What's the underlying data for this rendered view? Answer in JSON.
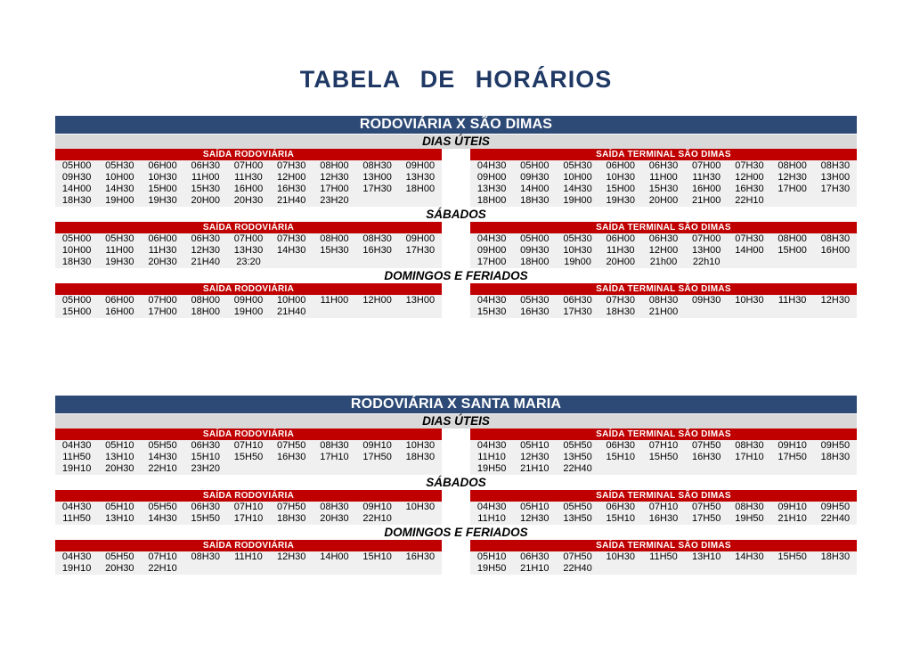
{
  "page_title": "TABELA DE HORÁRIOS",
  "colors": {
    "title_navy": "#1F3864",
    "route_bar_navy": "#2D4A76",
    "header_red": "#C00000",
    "day_band_gray": "#D9D9D9",
    "table_gray": "#F0F0F0"
  },
  "sections": [
    {
      "title": "RODOVIÁRIA X SÃO DIMAS",
      "day_blocks": [
        {
          "label": "DIAS ÚTEIS",
          "band": true,
          "left": {
            "header": "SAÍDA RODOVIÁRIA",
            "rows": [
              [
                "05H00",
                "05H30",
                "06H00",
                "06H30",
                "07H00",
                "07H30",
                "08H00",
                "08H30",
                "09H00"
              ],
              [
                "09H30",
                "10H00",
                "10H30",
                "11H00",
                "11H30",
                "12H00",
                "12H30",
                "13H00",
                "13H30"
              ],
              [
                "14H00",
                "14H30",
                "15H00",
                "15H30",
                "16H00",
                "16H30",
                "17H00",
                "17H30",
                "18H00"
              ],
              [
                "18H30",
                "19H00",
                "19H30",
                "20H00",
                "20H30",
                "21H40",
                "23H20"
              ]
            ]
          },
          "right": {
            "header": "SAÍDA TERMINAL SÃO DIMAS",
            "rows": [
              [
                "04H30",
                "05H00",
                "05H30",
                "06H00",
                "06H30",
                "07H00",
                "07H30",
                "08H00",
                "08H30"
              ],
              [
                "09H00",
                "09H30",
                "10H00",
                "10H30",
                "11H00",
                "11H30",
                "12H00",
                "12H30",
                "13H00"
              ],
              [
                "13H30",
                "14H00",
                "14H30",
                "15H00",
                "15H30",
                "16H00",
                "16H30",
                "17H00",
                "17H30"
              ],
              [
                "18H00",
                "18H30",
                "19H00",
                "19H30",
                "20H00",
                "21H00",
                "22H10"
              ]
            ]
          }
        },
        {
          "label": "SÁBADOS",
          "band": false,
          "left": {
            "header": "SAÍDA RODOVIÁRIA",
            "rows": [
              [
                "05H00",
                "05H30",
                "06H00",
                "06H30",
                "07H00",
                "07H30",
                "08H00",
                "08H30",
                "09H00"
              ],
              [
                "10H00",
                "11H00",
                "11H30",
                "12H30",
                "13H30",
                "14H30",
                "15H30",
                "16H30",
                "17H30"
              ],
              [
                "18H30",
                "19H30",
                "20H30",
                "21H40",
                "23:20"
              ]
            ]
          },
          "right": {
            "header": "SAÍDA TERMINAL SÃO DIMAS",
            "rows": [
              [
                "04H30",
                "05H00",
                "05H30",
                "06H00",
                "06H30",
                "07H00",
                "07H30",
                "08H00",
                "08H30"
              ],
              [
                "09H00",
                "09H30",
                "10H30",
                "11H30",
                "12H00",
                "13H00",
                "14H00",
                "15H00",
                "16H00"
              ],
              [
                "17H00",
                "18H00",
                "19h00",
                "20H00",
                "21h00",
                "22h10"
              ]
            ]
          }
        },
        {
          "label": "DOMINGOS E FERIADOS",
          "band": false,
          "left": {
            "header": "SAÍDA RODOVIÁRIA",
            "rows": [
              [
                "05H00",
                "06H00",
                "07H00",
                "08H00",
                "09H00",
                "10H00",
                "11H00",
                "12H00",
                "13H00"
              ],
              [
                "15H00",
                "16H00",
                "17H00",
                "18H00",
                "19H00",
                "21H40"
              ]
            ]
          },
          "right": {
            "header": "SAÍDA TERMINAL SÃO DIMAS",
            "rows": [
              [
                "04H30",
                "05H30",
                "06H30",
                "07H30",
                "08H30",
                "09H30",
                "10H30",
                "11H30",
                "12H30"
              ],
              [
                "15H30",
                "16H30",
                "17H30",
                "18H30",
                "21H00"
              ]
            ]
          }
        }
      ]
    },
    {
      "title": "RODOVIÁRIA X SANTA MARIA",
      "day_blocks": [
        {
          "label": "DIAS ÚTEIS",
          "band": true,
          "left": {
            "header": "SAÍDA RODOVIÁRIA",
            "rows": [
              [
                "04H30",
                "05H10",
                "05H50",
                "06H30",
                "07H10",
                "07H50",
                "08H30",
                "09H10",
                "10H30"
              ],
              [
                "11H50",
                "13H10",
                "14H30",
                "15H10",
                "15H50",
                "16H30",
                "17H10",
                "17H50",
                "18H30"
              ],
              [
                "19H10",
                "20H30",
                "22H10",
                "23H20"
              ]
            ]
          },
          "right": {
            "header": "SAÍDA TERMINAL SÃO DIMAS",
            "rows": [
              [
                "04H30",
                "05H10",
                "05H50",
                "06H30",
                "07H10",
                "07H50",
                "08H30",
                "09H10",
                "09H50"
              ],
              [
                "11H10",
                "12H30",
                "13H50",
                "15H10",
                "15H50",
                "16H30",
                "17H10",
                "17H50",
                "18H30"
              ],
              [
                "19H50",
                "21H10",
                "22H40"
              ]
            ]
          }
        },
        {
          "label": "SÁBADOS",
          "band": false,
          "left": {
            "header": "SAÍDA RODOVIÁRIA",
            "rows": [
              [
                "04H30",
                "05H10",
                "05H50",
                "06H30",
                "07H10",
                "07H50",
                "08H30",
                "09H10",
                "10H30"
              ],
              [
                "11H50",
                "13H10",
                "14H30",
                "15H50",
                "17H10",
                "18H30",
                "20H30",
                "22H10"
              ]
            ]
          },
          "right": {
            "header": "SAÍDA TERMINAL SÃO DIMAS",
            "rows": [
              [
                "04H30",
                "05H10",
                "05H50",
                "06H30",
                "07H10",
                "07H50",
                "08H30",
                "09H10",
                "09H50"
              ],
              [
                "11H10",
                "12H30",
                "13H50",
                "15H10",
                "16H30",
                "17H50",
                "19H50",
                "21H10",
                "22H40"
              ]
            ]
          }
        },
        {
          "label": "DOMINGOS E FERIADOS",
          "band": false,
          "left": {
            "header": "SAÍDA RODOVIÁRIA",
            "rows": [
              [
                "04H30",
                "05H50",
                "07H10",
                "08H30",
                "11H10",
                "12H30",
                "14H00",
                "15H10",
                "16H30"
              ],
              [
                "19H10",
                "20H30",
                "22H10"
              ]
            ]
          },
          "right": {
            "header": "SAÍDA TERMINAL SÃO DIMAS",
            "rows": [
              [
                "05H10",
                "06H30",
                "07H50",
                "10H30",
                "11H50",
                "13H10",
                "14H30",
                "15H50",
                "18H30"
              ],
              [
                "19H50",
                "21H10",
                "22H40"
              ]
            ]
          }
        }
      ]
    }
  ]
}
